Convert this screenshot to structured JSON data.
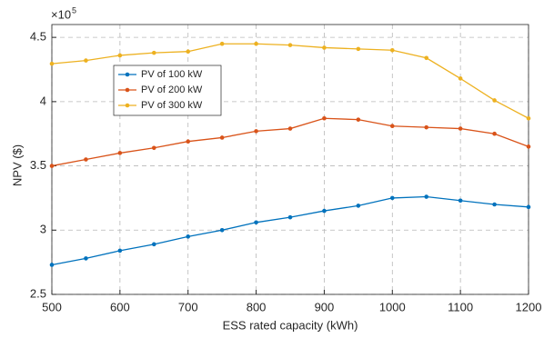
{
  "chart_data": {
    "type": "line",
    "xlabel": "ESS rated capacity (kWh)",
    "ylabel": "NPV ($)",
    "y_multiplier": {
      "base": "×10",
      "exponent": "5"
    },
    "x": [
      500,
      550,
      600,
      650,
      700,
      750,
      800,
      850,
      900,
      950,
      1000,
      1050,
      1100,
      1150,
      1200
    ],
    "series": [
      {
        "name": "PV of 100 kW",
        "color": "#0072BD",
        "values": [
          2.73,
          2.78,
          2.84,
          2.89,
          2.95,
          3.0,
          3.06,
          3.1,
          3.15,
          3.19,
          3.25,
          3.26,
          3.23,
          3.2,
          3.18
        ]
      },
      {
        "name": "PV of 200 kW",
        "color": "#D95319",
        "values": [
          3.5,
          3.55,
          3.6,
          3.64,
          3.69,
          3.72,
          3.77,
          3.79,
          3.87,
          3.86,
          3.81,
          3.8,
          3.79,
          3.75,
          3.65
        ]
      },
      {
        "name": "PV of 300 kW",
        "color": "#EDB120",
        "values": [
          4.295,
          4.32,
          4.36,
          4.38,
          4.39,
          4.45,
          4.45,
          4.44,
          4.42,
          4.41,
          4.4,
          4.34,
          4.18,
          4.01,
          3.87
        ]
      }
    ],
    "xlim": [
      500,
      1200
    ],
    "xticks": [
      500,
      600,
      700,
      800,
      900,
      1000,
      1100,
      1200
    ],
    "ylim": [
      2.5,
      4.6
    ],
    "yticks": [
      2.5,
      3,
      3.5,
      4,
      4.5
    ],
    "grid": true,
    "legend": "upper left"
  }
}
